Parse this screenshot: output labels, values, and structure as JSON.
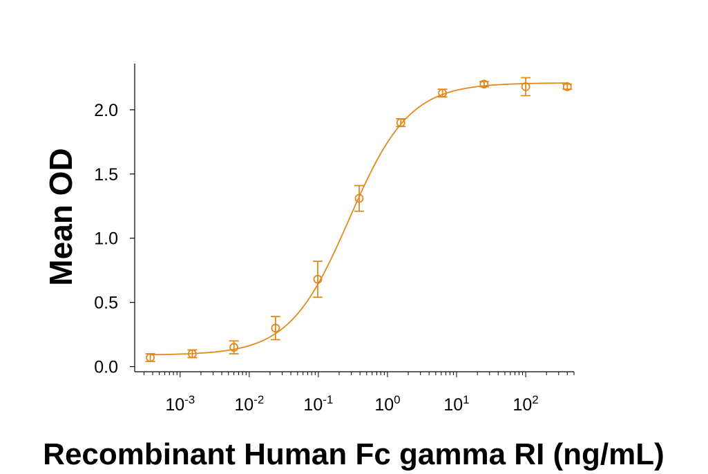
{
  "chart_data": {
    "type": "scatter",
    "xlabel": "Recombinant Human Fc gamma RI (ng/mL)",
    "ylabel": "Mean OD",
    "x_scale": "log",
    "x_range": [
      0.00022,
      500
    ],
    "ylim": [
      -0.04,
      2.36
    ],
    "y_ticks": [
      0.0,
      0.5,
      1.0,
      1.5,
      2.0
    ],
    "y_tick_labels": [
      "0.0",
      "0.5",
      "1.0",
      "1.5",
      "2.0"
    ],
    "x_ticks": [
      {
        "base": "10",
        "exp": "-3"
      },
      {
        "base": "10",
        "exp": "-2"
      },
      {
        "base": "10",
        "exp": "-1"
      },
      {
        "base": "10",
        "exp": "0"
      },
      {
        "base": "10",
        "exp": "1"
      },
      {
        "base": "10",
        "exp": "2"
      }
    ],
    "grid": false,
    "color": "#E08A1E",
    "series": [
      {
        "points": [
          {
            "x": 0.00037,
            "y": 0.07,
            "err": 0.03
          },
          {
            "x": 0.0015,
            "y": 0.1,
            "err": 0.03
          },
          {
            "x": 0.006,
            "y": 0.15,
            "err": 0.05
          },
          {
            "x": 0.024,
            "y": 0.3,
            "err": 0.09
          },
          {
            "x": 0.098,
            "y": 0.68,
            "err": 0.14
          },
          {
            "x": 0.39,
            "y": 1.31,
            "err": 0.1
          },
          {
            "x": 1.56,
            "y": 1.9,
            "err": 0.03
          },
          {
            "x": 6.25,
            "y": 2.13,
            "err": 0.03
          },
          {
            "x": 25,
            "y": 2.2,
            "err": 0.02
          },
          {
            "x": 100,
            "y": 2.18,
            "err": 0.07
          },
          {
            "x": 400,
            "y": 2.18,
            "err": 0.02
          }
        ],
        "fit": {
          "bottom": 0.09,
          "top": 2.21,
          "ec50": 0.28,
          "hill": 1.0
        }
      }
    ]
  }
}
